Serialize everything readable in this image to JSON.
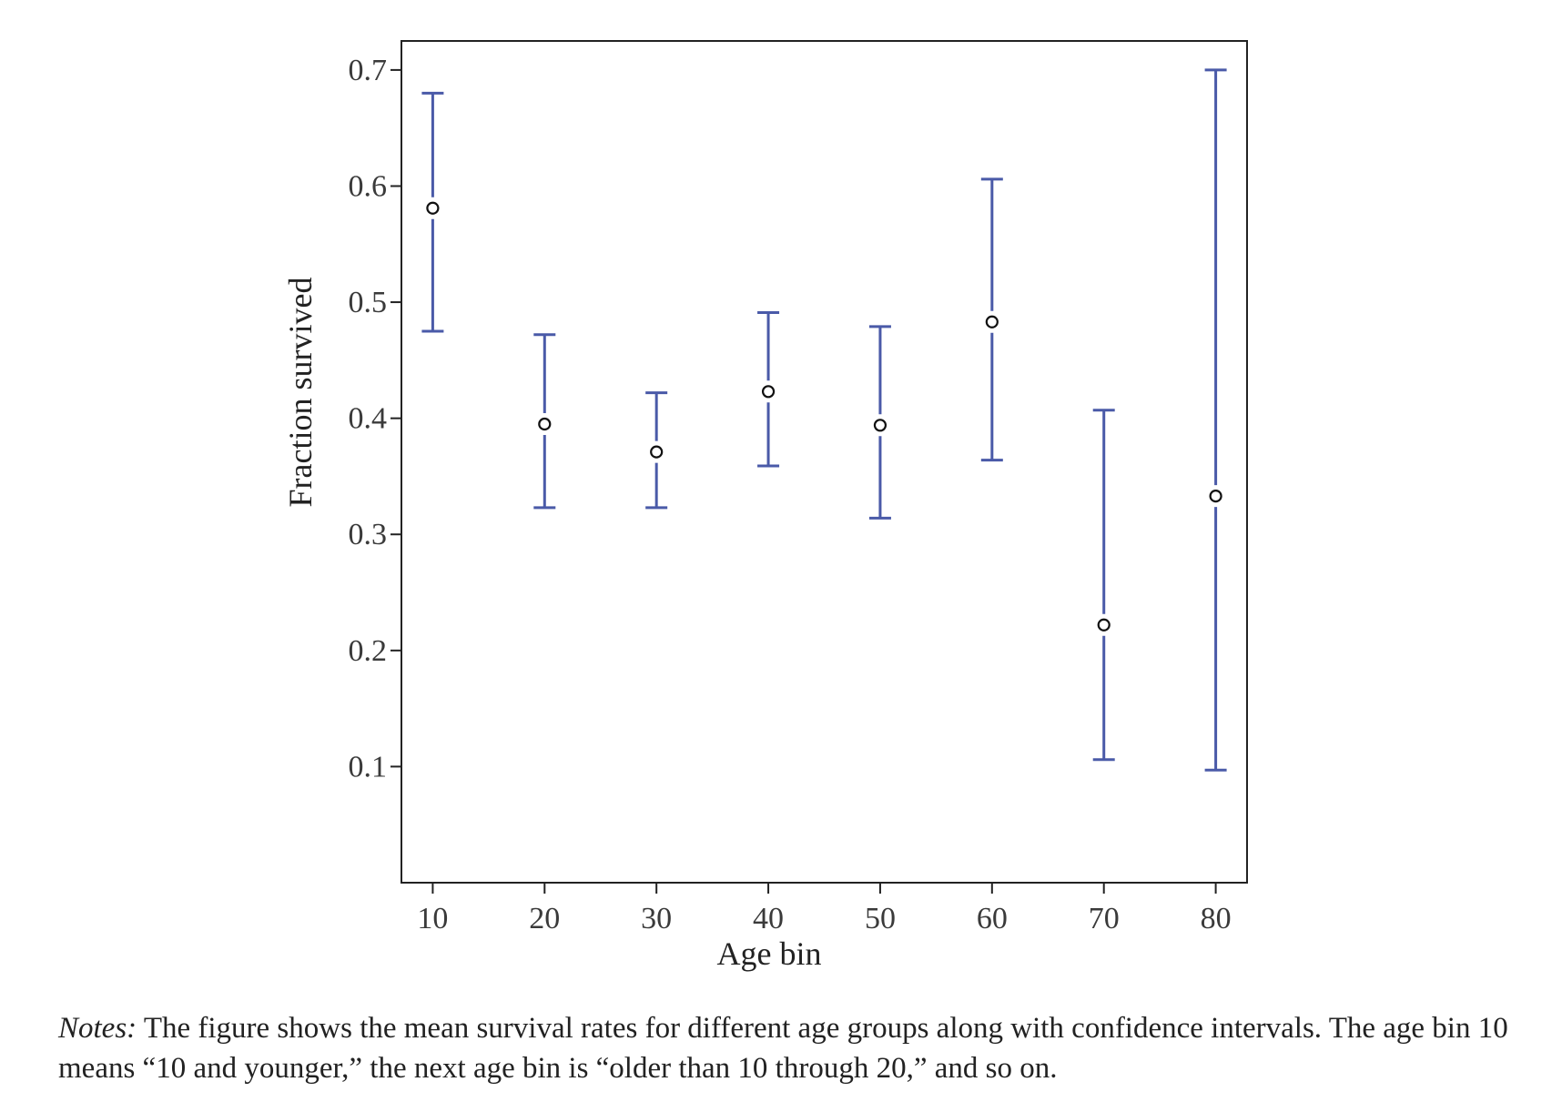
{
  "chart_data": {
    "type": "errorbar",
    "xlabel": "Age bin",
    "ylabel": "Fraction survived",
    "x_ticks": [
      "10",
      "20",
      "30",
      "40",
      "50",
      "60",
      "70",
      "80"
    ],
    "y_ticks": [
      "0.1",
      "0.2",
      "0.3",
      "0.4",
      "0.5",
      "0.6",
      "0.7"
    ],
    "xlim": [
      7.2,
      82.8
    ],
    "ylim": [
      0.0,
      0.725
    ],
    "grid": false,
    "series": [
      {
        "color": "#4a5aa8",
        "points": [
          {
            "x": 10,
            "y": 0.581,
            "low": 0.475,
            "high": 0.68
          },
          {
            "x": 20,
            "y": 0.395,
            "low": 0.323,
            "high": 0.472
          },
          {
            "x": 30,
            "y": 0.371,
            "low": 0.323,
            "high": 0.422
          },
          {
            "x": 40,
            "y": 0.423,
            "low": 0.359,
            "high": 0.491
          },
          {
            "x": 50,
            "y": 0.394,
            "low": 0.314,
            "high": 0.479
          },
          {
            "x": 60,
            "y": 0.483,
            "low": 0.364,
            "high": 0.606
          },
          {
            "x": 70,
            "y": 0.222,
            "low": 0.106,
            "high": 0.407
          },
          {
            "x": 80,
            "y": 0.333,
            "low": 0.097,
            "high": 0.7
          }
        ]
      }
    ]
  },
  "notes": {
    "label": "Notes:",
    "text": " The figure shows the mean survival rates for different age groups along with confidence intervals. The age bin 10 means “10 and younger,” the next age bin is “older than 10 through 20,” and so on."
  }
}
